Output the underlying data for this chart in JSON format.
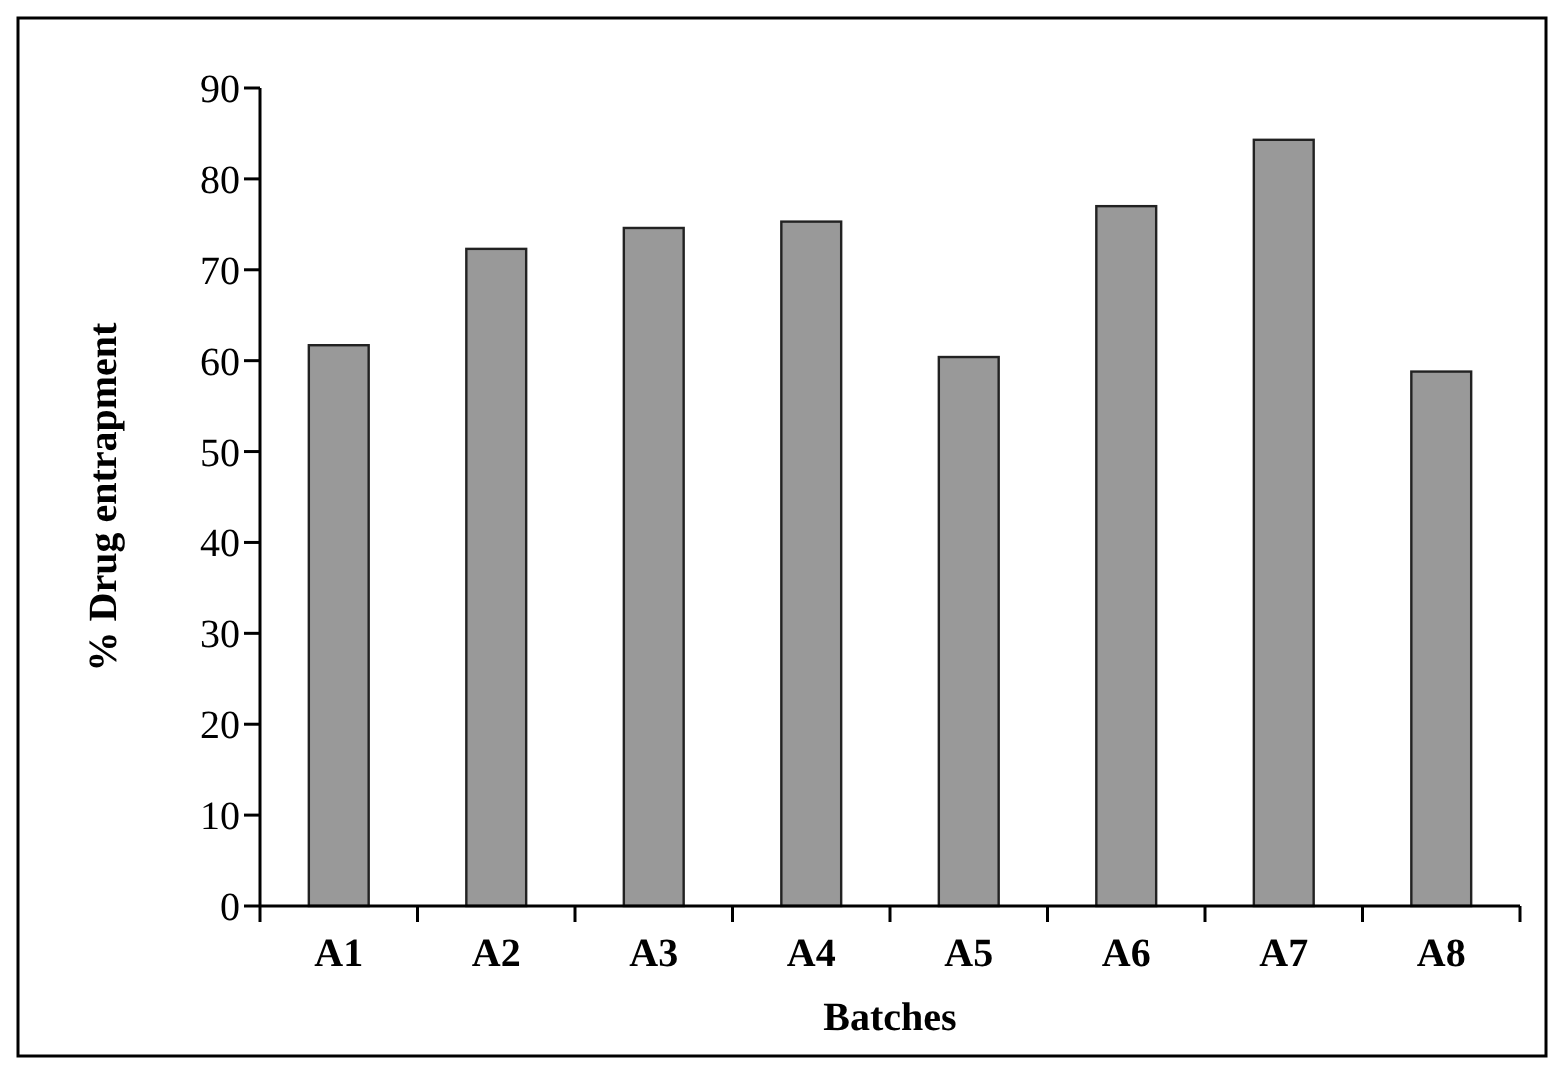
{
  "chart_data": {
    "type": "bar",
    "xlabel": "Batches",
    "ylabel": "% Drug entrapment",
    "categories": [
      "A1",
      "A2",
      "A3",
      "A4",
      "A5",
      "A6",
      "A7",
      "A8"
    ],
    "values": [
      61.7,
      72.3,
      74.6,
      75.3,
      60.4,
      77.0,
      84.3,
      58.8
    ],
    "color": "#999999",
    "ylim": [
      0,
      90
    ],
    "yticks": [
      0,
      10,
      20,
      30,
      40,
      50,
      60,
      70,
      80,
      90
    ],
    "grid": false
  }
}
